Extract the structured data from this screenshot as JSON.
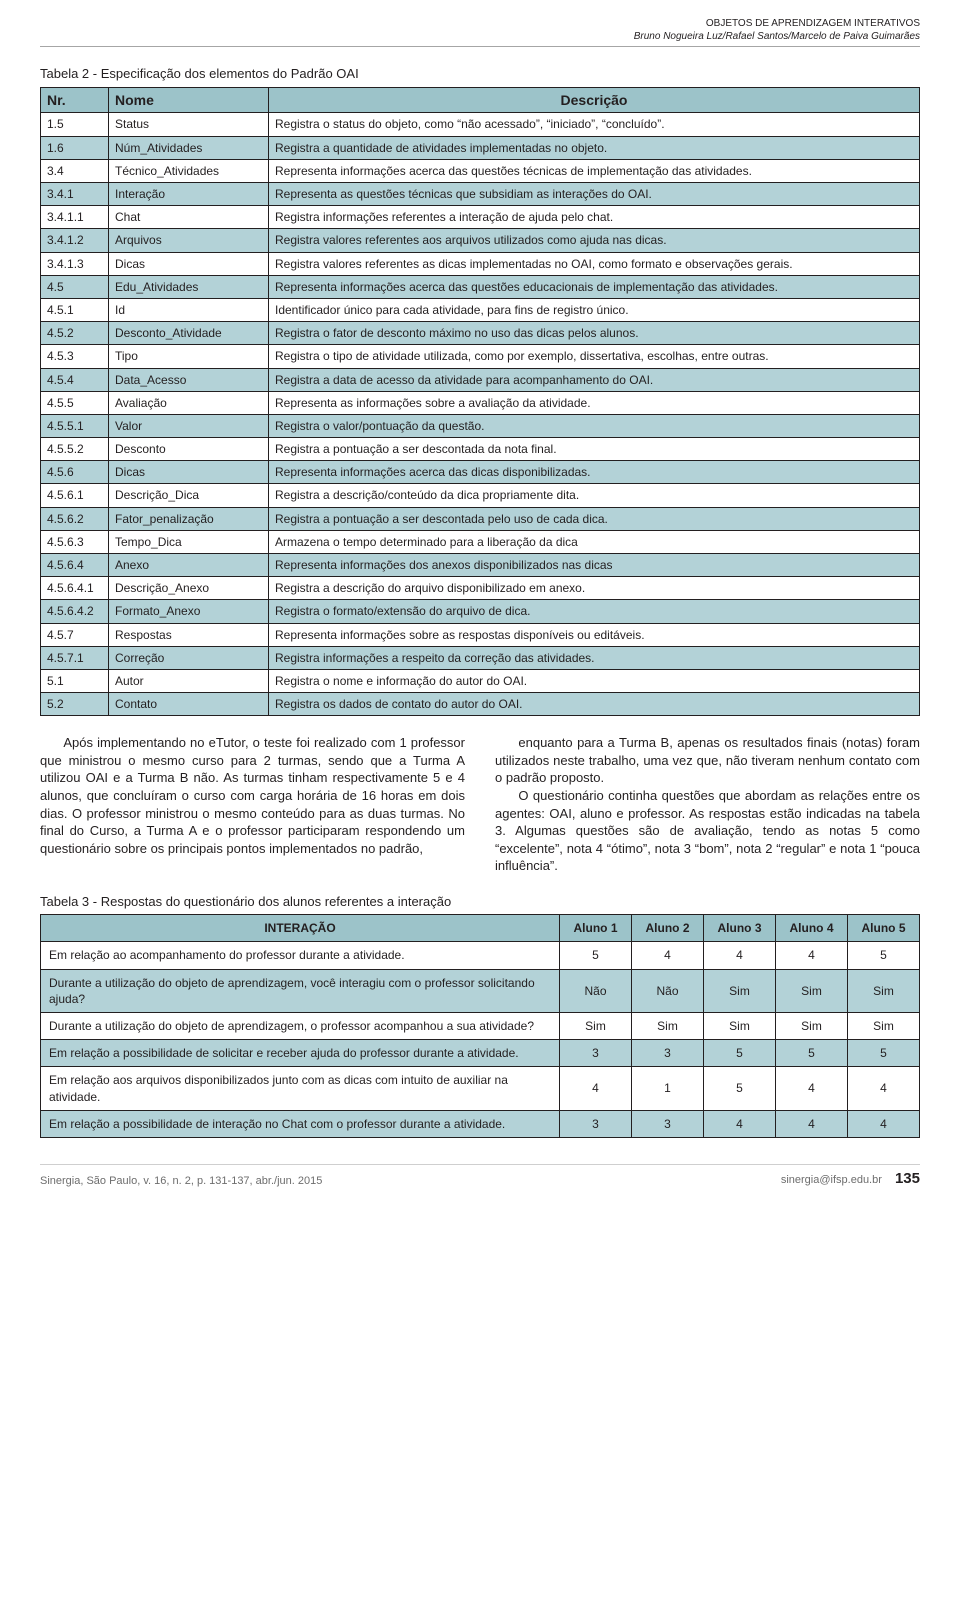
{
  "header": {
    "line1": "OBJETOS DE APRENDIZAGEM INTERATIVOS",
    "line2": "Bruno Nogueira Luz/Rafael Santos/Marcelo de Paiva Guimarães"
  },
  "table2": {
    "caption": "Tabela 2 - Especificação dos elementos do Padrão OAI",
    "columns": {
      "nr": "Nr.",
      "nome": "Nome",
      "desc": "Descrição"
    },
    "header_bg": "#9cc3c9",
    "row_alt_bg": "#b3d2d7",
    "border_color": "#231f20",
    "rows": [
      {
        "nr": "1.5",
        "nome": "Status",
        "desc": "Registra o status do objeto, como “não acessado”, “iniciado”, “concluído”."
      },
      {
        "nr": "1.6",
        "nome": "Núm_Atividades",
        "desc": "Registra a quantidade de atividades implementadas no objeto."
      },
      {
        "nr": "3.4",
        "nome": "Técnico_Atividades",
        "desc": "Representa informações acerca das questões técnicas de implementação das atividades."
      },
      {
        "nr": "3.4.1",
        "nome": "Interação",
        "desc": "Representa as questões técnicas que subsidiam as interações do OAI."
      },
      {
        "nr": "3.4.1.1",
        "nome": "Chat",
        "desc": "Registra informações referentes a interação de ajuda pelo chat."
      },
      {
        "nr": "3.4.1.2",
        "nome": "Arquivos",
        "desc": "Registra valores referentes aos arquivos utilizados como ajuda nas dicas."
      },
      {
        "nr": "3.4.1.3",
        "nome": "Dicas",
        "desc": "Registra valores referentes as dicas implementadas no OAI, como formato e observações gerais."
      },
      {
        "nr": "4.5",
        "nome": "Edu_Atividades",
        "desc": "Representa informações acerca das questões educacionais de implementação das atividades."
      },
      {
        "nr": "4.5.1",
        "nome": "Id",
        "desc": "Identificador único para cada atividade, para fins de registro único."
      },
      {
        "nr": "4.5.2",
        "nome": "Desconto_Atividade",
        "desc": "Registra o fator de desconto máximo no uso das dicas pelos alunos."
      },
      {
        "nr": "4.5.3",
        "nome": "Tipo",
        "desc": "Registra o tipo de atividade utilizada, como por exemplo, dissertativa, escolhas, entre outras."
      },
      {
        "nr": "4.5.4",
        "nome": "Data_Acesso",
        "desc": "Registra a data de acesso da atividade para acompanhamento do OAI."
      },
      {
        "nr": "4.5.5",
        "nome": "Avaliação",
        "desc": "Representa as informações sobre a avaliação da atividade."
      },
      {
        "nr": "4.5.5.1",
        "nome": "Valor",
        "desc": "Registra o valor/pontuação da questão."
      },
      {
        "nr": "4.5.5.2",
        "nome": "Desconto",
        "desc": "Registra a pontuação a ser descontada da nota final."
      },
      {
        "nr": "4.5.6",
        "nome": "Dicas",
        "desc": "Representa informações acerca das dicas disponibilizadas."
      },
      {
        "nr": "4.5.6.1",
        "nome": "Descrição_Dica",
        "desc": "Registra a descrição/conteúdo da dica propriamente dita."
      },
      {
        "nr": "4.5.6.2",
        "nome": "Fator_penalização",
        "desc": "Registra a pontuação a ser descontada pelo uso de cada dica."
      },
      {
        "nr": "4.5.6.3",
        "nome": "Tempo_Dica",
        "desc": "Armazena o tempo determinado para a liberação da dica"
      },
      {
        "nr": "4.5.6.4",
        "nome": "Anexo",
        "desc": "Representa informações dos anexos disponibilizados nas dicas"
      },
      {
        "nr": "4.5.6.4.1",
        "nome": "Descrição_Anexo",
        "desc": "Registra a descrição do arquivo disponibilizado em anexo."
      },
      {
        "nr": "4.5.6.4.2",
        "nome": "Formato_Anexo",
        "desc": "Registra o formato/extensão do arquivo de dica."
      },
      {
        "nr": "4.5.7",
        "nome": "Respostas",
        "desc": "Representa informações sobre as respostas disponíveis ou editáveis."
      },
      {
        "nr": "4.5.7.1",
        "nome": "Correção",
        "desc": "Registra informações a respeito da correção das atividades."
      },
      {
        "nr": "5.1",
        "nome": "Autor",
        "desc": "Registra o nome e informação do autor do OAI."
      },
      {
        "nr": "5.2",
        "nome": "Contato",
        "desc": "Registra os dados de contato do autor do OAI."
      }
    ]
  },
  "body": {
    "left": "Após implementando no eTutor, o teste foi realizado com 1 professor que ministrou o mesmo curso para 2 turmas, sendo que a Turma A utilizou OAI e a Turma B não. As turmas tinham respectivamente 5 e 4 alunos, que concluíram o curso com carga horária de 16 horas em dois dias. O professor ministrou o mesmo conteúdo para as duas turmas. No final do Curso, a Turma A e o professor participaram respondendo um questionário sobre os principais pontos implementados no padrão,",
    "right": "enquanto para a Turma B, apenas os resultados finais (notas) foram utilizados neste trabalho, uma vez que, não tiveram nenhum contato com o padrão proposto.\nO questionário continha questões que abordam as relações entre os agentes: OAI, aluno e professor. As respostas estão indicadas na tabela 3. Algumas questões são de avaliação, tendo as notas 5 como “excelente”, nota 4 “ótimo”, nota 3 “bom”, nota 2 “regular” e nota 1 “pouca influência”."
  },
  "table3": {
    "caption": "Tabela 3 - Respostas do questionário dos alunos referentes a interação",
    "columns": {
      "q": "INTERAÇÃO",
      "a1": "Aluno 1",
      "a2": "Aluno 2",
      "a3": "Aluno 3",
      "a4": "Aluno 4",
      "a5": "Aluno 5"
    },
    "header_bg": "#9cc3c9",
    "row_alt_bg": "#b3d2d7",
    "rows": [
      {
        "q": "Em relação ao acompanhamento do professor durante a atividade.",
        "v": [
          "5",
          "4",
          "4",
          "4",
          "5"
        ]
      },
      {
        "q": "Durante a utilização do objeto de aprendizagem, você interagiu com o professor solicitando ajuda?",
        "v": [
          "Não",
          "Não",
          "Sim",
          "Sim",
          "Sim"
        ]
      },
      {
        "q": "Durante a utilização do objeto de aprendizagem, o professor acompanhou a sua atividade?",
        "v": [
          "Sim",
          "Sim",
          "Sim",
          "Sim",
          "Sim"
        ]
      },
      {
        "q": "Em relação a possibilidade de solicitar e receber ajuda do professor durante a atividade.",
        "v": [
          "3",
          "3",
          "5",
          "5",
          "5"
        ]
      },
      {
        "q": "Em relação aos arquivos disponibilizados junto com as dicas com intuito de auxiliar na atividade.",
        "v": [
          "4",
          "1",
          "5",
          "4",
          "4"
        ]
      },
      {
        "q": "Em relação a possibilidade de interação no Chat com o professor durante a atividade.",
        "v": [
          "3",
          "3",
          "4",
          "4",
          "4"
        ]
      }
    ]
  },
  "footer": {
    "left": "Sinergia, São Paulo, v. 16, n. 2, p. 131-137, abr./jun. 2015",
    "right": "sinergia@ifsp.edu.br",
    "page": "135"
  }
}
